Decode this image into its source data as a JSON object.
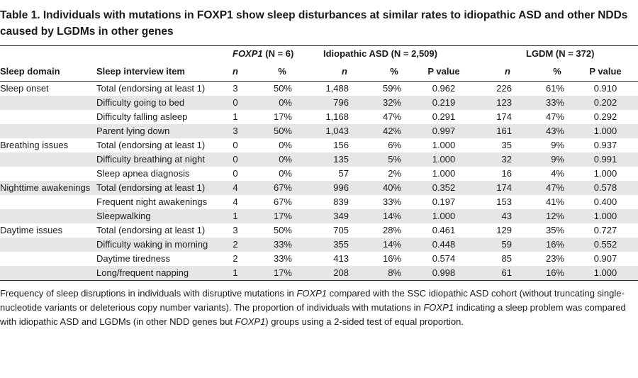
{
  "caption": "Table 1. Individuals with mutations in FOXP1 show sleep disturbances at similar rates to idiopathic ASD and other NDDs caused by LGDMs in other genes",
  "groups": {
    "foxp1_gene": "FOXP1",
    "foxp1_n": " (N = 6)",
    "asd": "Idiopathic ASD (N = 2,509)",
    "lgdm": "LGDM (N = 372)"
  },
  "headers": {
    "domain": "Sleep domain",
    "item": "Sleep interview item",
    "n1": "n",
    "pct1": "%",
    "n2": "n",
    "pct2": "%",
    "p2": "P value",
    "n3": "n",
    "pct3": "%",
    "p3": "P value"
  },
  "rows": [
    {
      "domain": "Sleep onset",
      "item": "Total (endorsing at least 1)",
      "n1": "3",
      "pct1": "50%",
      "n2": "1,488",
      "pct2": "59%",
      "p2": "0.962",
      "n3": "226",
      "pct3": "61%",
      "p3": "0.910"
    },
    {
      "domain": "",
      "item": "Difficulty going to bed",
      "n1": "0",
      "pct1": "0%",
      "n2": "796",
      "pct2": "32%",
      "p2": "0.219",
      "n3": "123",
      "pct3": "33%",
      "p3": "0.202"
    },
    {
      "domain": "",
      "item": "Difficulty falling asleep",
      "n1": "1",
      "pct1": "17%",
      "n2": "1,168",
      "pct2": "47%",
      "p2": "0.291",
      "n3": "174",
      "pct3": "47%",
      "p3": "0.292"
    },
    {
      "domain": "",
      "item": "Parent lying down",
      "n1": "3",
      "pct1": "50%",
      "n2": "1,043",
      "pct2": "42%",
      "p2": "0.997",
      "n3": "161",
      "pct3": "43%",
      "p3": "1.000"
    },
    {
      "domain": "Breathing issues",
      "item": "Total (endorsing at least 1)",
      "n1": "0",
      "pct1": "0%",
      "n2": "156",
      "pct2": "6%",
      "p2": "1.000",
      "n3": "35",
      "pct3": "9%",
      "p3": "0.937"
    },
    {
      "domain": "",
      "item": "Difficulty breathing at night",
      "n1": "0",
      "pct1": "0%",
      "n2": "135",
      "pct2": "5%",
      "p2": "1.000",
      "n3": "32",
      "pct3": "9%",
      "p3": "0.991"
    },
    {
      "domain": "",
      "item": "Sleep apnea diagnosis",
      "n1": "0",
      "pct1": "0%",
      "n2": "57",
      "pct2": "2%",
      "p2": "1.000",
      "n3": "16",
      "pct3": "4%",
      "p3": "1.000"
    },
    {
      "domain": "Nighttime awakenings",
      "item": "Total (endorsing at least 1)",
      "n1": "4",
      "pct1": "67%",
      "n2": "996",
      "pct2": "40%",
      "p2": "0.352",
      "n3": "174",
      "pct3": "47%",
      "p3": "0.578"
    },
    {
      "domain": "",
      "item": "Frequent night awakenings",
      "n1": "4",
      "pct1": "67%",
      "n2": "839",
      "pct2": "33%",
      "p2": "0.197",
      "n3": "153",
      "pct3": "41%",
      "p3": "0.400"
    },
    {
      "domain": "",
      "item": "Sleepwalking",
      "n1": "1",
      "pct1": "17%",
      "n2": "349",
      "pct2": "14%",
      "p2": "1.000",
      "n3": "43",
      "pct3": "12%",
      "p3": "1.000"
    },
    {
      "domain": "Daytime issues",
      "item": "Total (endorsing at least 1)",
      "n1": "3",
      "pct1": "50%",
      "n2": "705",
      "pct2": "28%",
      "p2": "0.461",
      "n3": "129",
      "pct3": "35%",
      "p3": "0.727"
    },
    {
      "domain": "",
      "item": "Difficulty waking in morning",
      "n1": "2",
      "pct1": "33%",
      "n2": "355",
      "pct2": "14%",
      "p2": "0.448",
      "n3": "59",
      "pct3": "16%",
      "p3": "0.552"
    },
    {
      "domain": "",
      "item": "Daytime tiredness",
      "n1": "2",
      "pct1": "33%",
      "n2": "413",
      "pct2": "16%",
      "p2": "0.574",
      "n3": "85",
      "pct3": "23%",
      "p3": "0.907"
    },
    {
      "domain": "",
      "item": "Long/frequent napping",
      "n1": "1",
      "pct1": "17%",
      "n2": "208",
      "pct2": "8%",
      "p2": "0.998",
      "n3": "61",
      "pct3": "16%",
      "p3": "1.000"
    }
  ],
  "footnote": {
    "part1": "Frequency of sleep disruptions in individuals with disruptive mutations in ",
    "gene1": "FOXP1",
    "part2": " compared with the SSC idiopathic ASD cohort (without truncating single-nucleotide variants or deleterious copy number variants). The proportion of individuals with mutations in ",
    "gene2": "FOXP1",
    "part3": " indicating a sleep problem was compared with idiopathic ASD and LGDMs (in other NDD genes but ",
    "gene3": "FOXP1",
    "part4": ") groups using a 2-sided test of equal proportion."
  },
  "colors": {
    "shade": "#e6e6e6",
    "rule": "#2a2a2a",
    "text": "#1a1a1a"
  }
}
